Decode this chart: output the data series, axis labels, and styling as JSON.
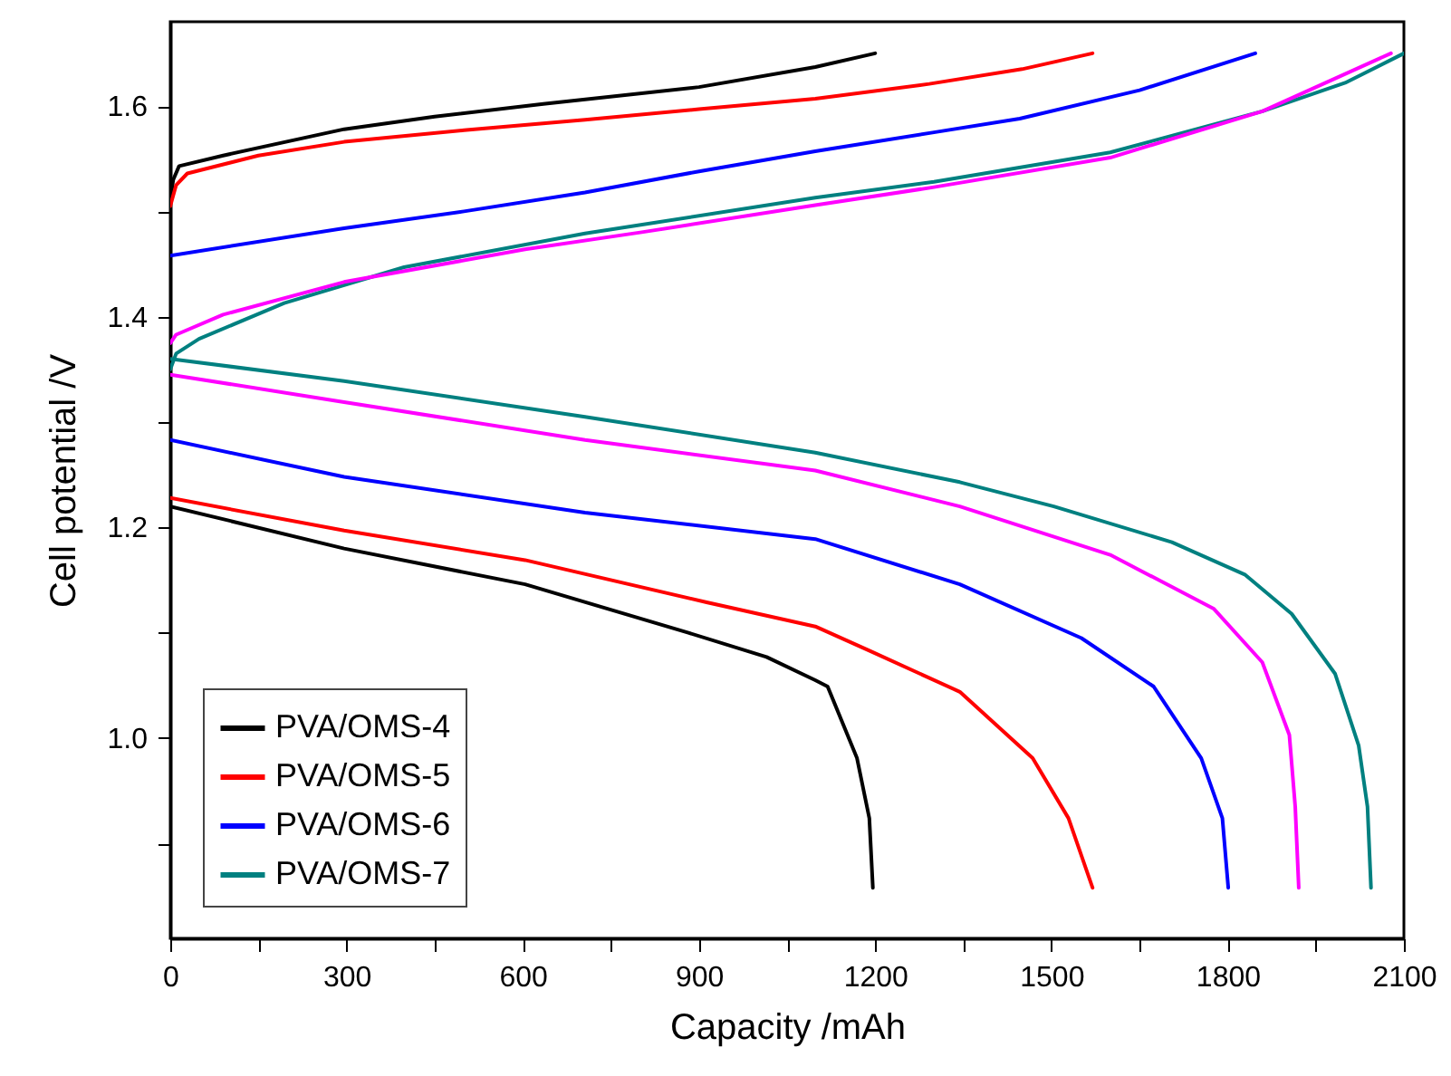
{
  "chart_data": {
    "type": "line",
    "xlabel": "Capacity /mAh",
    "ylabel": "Cell potential /V",
    "xlim": [
      0,
      2100
    ],
    "ylim": [
      0.81,
      1.68
    ],
    "xticks": [
      0,
      {
        "value": 150,
        "label": null
      },
      300,
      {
        "value": 450,
        "label": null
      },
      600,
      {
        "value": 750,
        "label": null
      },
      900,
      {
        "value": 1050,
        "label": null
      },
      1200,
      {
        "value": 1350,
        "label": null
      },
      1500,
      {
        "value": 1650,
        "label": null
      },
      1800,
      {
        "value": 1950,
        "label": null
      },
      2100
    ],
    "yticks": [
      {
        "value": 0.9,
        "label": null
      },
      {
        "value": 1.0,
        "label": "1.0"
      },
      {
        "value": 1.1,
        "label": null
      },
      1.2,
      {
        "value": 1.3,
        "label": null
      },
      1.4,
      {
        "value": 1.5,
        "label": null
      },
      1.6
    ],
    "grid": false,
    "legend": "bottom left",
    "marker": "none",
    "line_style": "solid",
    "series": [
      {
        "name": "PVA/OMS-4",
        "color": "#000000",
        "x": [
          0,
          5,
          15,
          90,
          296,
          450,
          635,
          900,
          1098,
          1200,
          null,
          0,
          296,
          604,
          882,
          1015,
          1098,
          1119,
          1169,
          1190,
          1196
        ],
        "values": [
          1.51,
          1.53,
          1.543,
          1.553,
          1.578,
          1.59,
          1.602,
          1.618,
          1.637,
          1.65,
          null,
          1.22,
          1.18,
          1.146,
          1.1,
          1.077,
          1.055,
          1.049,
          0.981,
          0.924,
          0.858
        ]
      },
      {
        "name": "PVA/OMS-5",
        "color": "#ff0000",
        "x": [
          0,
          10,
          29,
          150,
          296,
          500,
          706,
          900,
          1098,
          1292,
          1450,
          1570,
          null,
          0,
          296,
          604,
          913,
          1098,
          1190,
          1344,
          1468,
          1529,
          1570
        ],
        "values": [
          1.505,
          1.525,
          1.536,
          1.553,
          1.566,
          1.577,
          1.587,
          1.597,
          1.607,
          1.621,
          1.635,
          1.65,
          null,
          1.228,
          1.197,
          1.169,
          1.129,
          1.106,
          1.083,
          1.044,
          0.981,
          0.924,
          0.858
        ]
      },
      {
        "name": "PVA/OMS-6",
        "color": "#0000ff",
        "x": [
          0,
          296,
          500,
          706,
          900,
          1098,
          1300,
          1446,
          1650,
          1847,
          null,
          0,
          296,
          706,
          1098,
          1344,
          1551,
          1674,
          1755,
          1791,
          1801
        ],
        "values": [
          1.458,
          1.484,
          1.5,
          1.518,
          1.538,
          1.557,
          1.575,
          1.588,
          1.615,
          1.65,
          null,
          1.283,
          1.248,
          1.214,
          1.189,
          1.146,
          1.095,
          1.049,
          0.981,
          0.924,
          0.858
        ]
      },
      {
        "name": "PVA/OMS-7",
        "color": "#008080",
        "x": [
          0,
          10,
          49,
          194,
          398,
          706,
          1098,
          1300,
          1600,
          1859,
          2000,
          2100,
          null,
          0,
          296,
          706,
          1098,
          1344,
          1504,
          1705,
          1830,
          1909,
          1983,
          2023,
          2038,
          2044
        ],
        "values": [
          1.35,
          1.365,
          1.379,
          1.413,
          1.447,
          1.479,
          1.513,
          1.528,
          1.556,
          1.595,
          1.622,
          1.65,
          null,
          1.36,
          1.339,
          1.305,
          1.271,
          1.243,
          1.22,
          1.186,
          1.155,
          1.118,
          1.061,
          0.993,
          0.935,
          0.858
        ]
      },
      {
        "color": "#ff00ff",
        "x": [
          0,
          10,
          90,
          296,
          604,
          800,
          1098,
          1300,
          1600,
          1859,
          2078,
          null,
          0,
          296,
          706,
          1098,
          1344,
          1600,
          1776,
          1859,
          1905,
          1915,
          1921
        ],
        "values": [
          1.375,
          1.383,
          1.402,
          1.433,
          1.464,
          1.48,
          1.506,
          1.523,
          1.551,
          1.595,
          1.65,
          null,
          1.345,
          1.319,
          1.283,
          1.254,
          1.22,
          1.174,
          1.123,
          1.072,
          1.003,
          0.935,
          0.858
        ]
      }
    ]
  }
}
